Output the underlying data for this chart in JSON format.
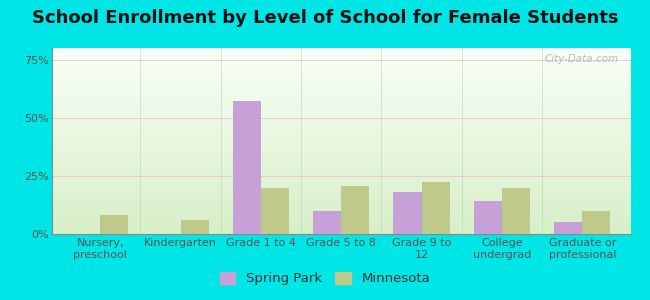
{
  "title": "School Enrollment by Level of School for Female Students",
  "categories": [
    "Nursery,\npreschool",
    "Kindergarten",
    "Grade 1 to 4",
    "Grade 5 to 8",
    "Grade 9 to\n12",
    "College\nundergrad",
    "Graduate or\nprofessional"
  ],
  "spring_park": [
    0.0,
    0.0,
    57.0,
    10.0,
    18.0,
    14.0,
    5.0
  ],
  "minnesota": [
    8.0,
    6.0,
    20.0,
    20.5,
    22.5,
    20.0,
    10.0
  ],
  "spring_park_color": "#c8a0d8",
  "minnesota_color": "#bec98a",
  "background_color": "#00e5e5",
  "plot_bg_top": "#f8fff8",
  "plot_bg_bottom": "#d8efc8",
  "yticks": [
    0,
    25,
    50,
    75
  ],
  "ylim": [
    0,
    80
  ],
  "bar_width": 0.35,
  "title_fontsize": 13,
  "tick_fontsize": 8,
  "legend_fontsize": 9.5,
  "watermark": "City-Data.com"
}
